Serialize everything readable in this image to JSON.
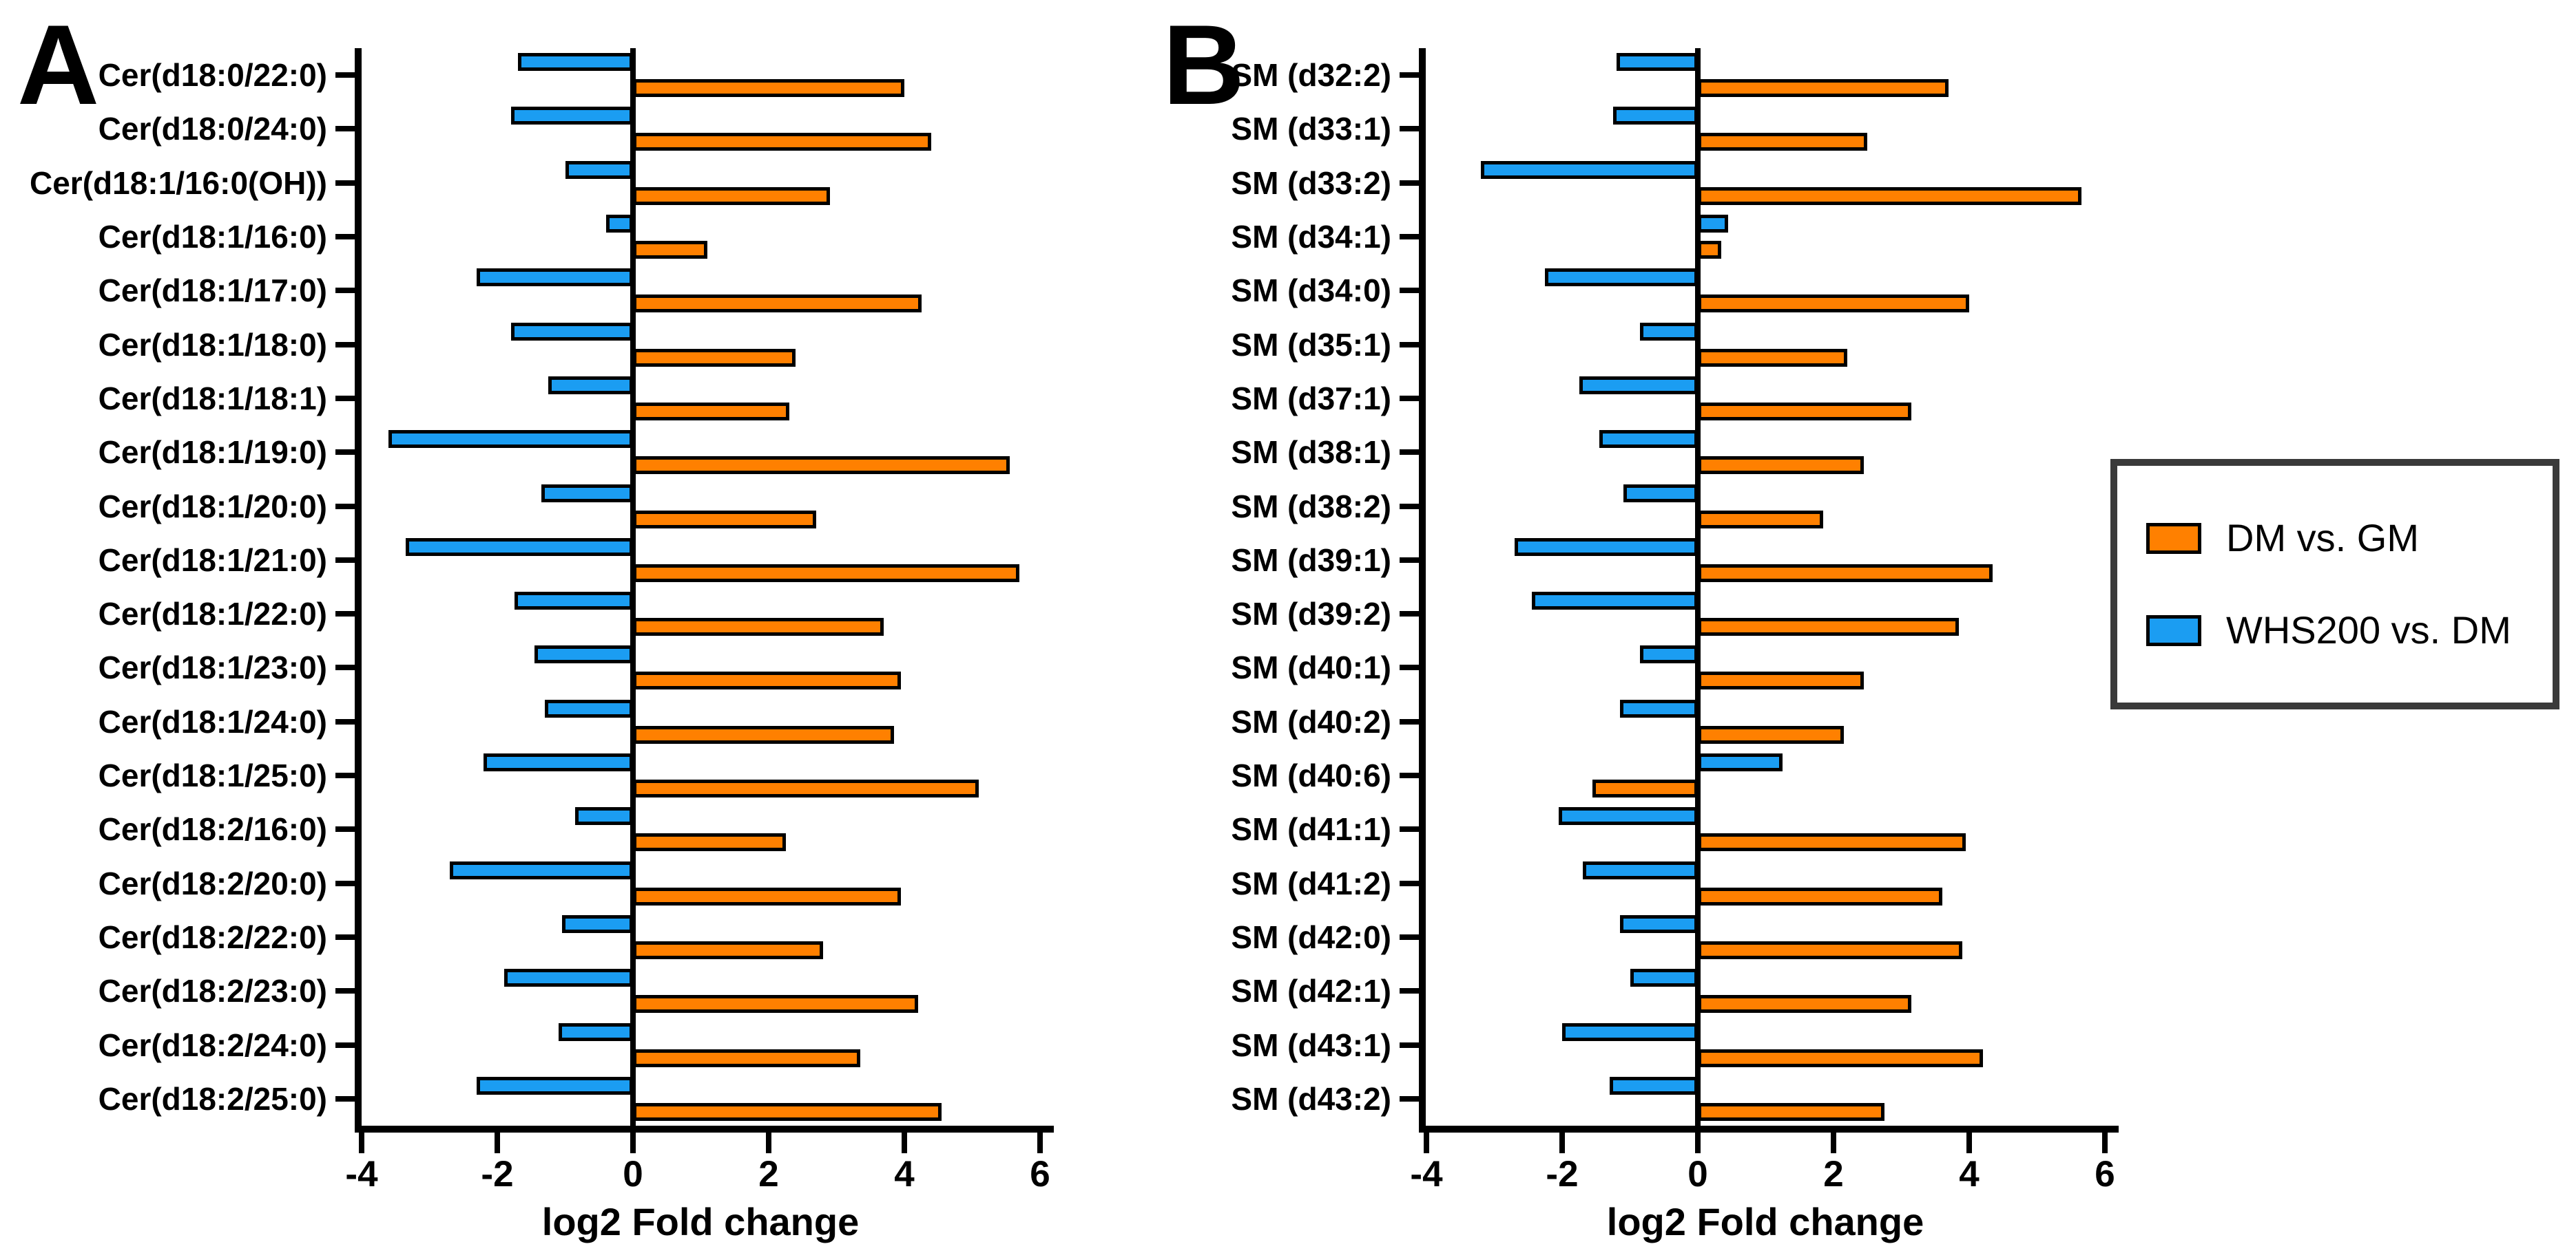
{
  "figure": {
    "background": "#FFFFFF",
    "axis_color": "#000000"
  },
  "legend": {
    "position": "right",
    "border_color": "#3A3A3A",
    "items": [
      {
        "label": "DM vs. GM",
        "color": "#FF8000"
      },
      {
        "label": "WHS200 vs. DM",
        "color": "#1B9DF2"
      }
    ]
  },
  "chart_data": [
    {
      "type": "bar",
      "orientation": "horizontal",
      "panel_label": "A",
      "title": "",
      "xlabel": "log2 Fold change",
      "ylabel": "",
      "xlim": [
        -4,
        6
      ],
      "xticks": [
        -4,
        -2,
        0,
        2,
        4,
        6
      ],
      "xtick_labels": [
        "-4",
        "-2",
        "0",
        "2",
        "4",
        "6"
      ],
      "grid": false,
      "legend_position": "outside-right",
      "categories": [
        "Cer(d18:0/22:0)",
        "Cer(d18:0/24:0)",
        "Cer(d18:1/16:0(OH))",
        "Cer(d18:1/16:0)",
        "Cer(d18:1/17:0)",
        "Cer(d18:1/18:0)",
        "Cer(d18:1/18:1)",
        "Cer(d18:1/19:0)",
        "Cer(d18:1/20:0)",
        "Cer(d18:1/21:0)",
        "Cer(d18:1/22:0)",
        "Cer(d18:1/23:0)",
        "Cer(d18:1/24:0)",
        "Cer(d18:1/25:0)",
        "Cer(d18:2/16:0)",
        "Cer(d18:2/20:0)",
        "Cer(d18:2/22:0)",
        "Cer(d18:2/23:0)",
        "Cer(d18:2/24:0)",
        "Cer(d18:2/25:0)"
      ],
      "series": [
        {
          "name": "DM vs. GM",
          "color": "#FF8000",
          "values": [
            4.0,
            4.4,
            2.9,
            1.1,
            4.25,
            2.4,
            2.3,
            5.55,
            2.7,
            5.7,
            3.7,
            3.95,
            3.85,
            5.1,
            2.25,
            3.95,
            2.8,
            4.2,
            3.35,
            4.55
          ]
        },
        {
          "name": "WHS200 vs. DM",
          "color": "#1B9DF2",
          "values": [
            -1.7,
            -1.8,
            -1.0,
            -0.4,
            -2.3,
            -1.8,
            -1.25,
            -3.6,
            -1.35,
            -3.35,
            -1.75,
            -1.45,
            -1.3,
            -2.2,
            -0.85,
            -2.7,
            -1.05,
            -1.9,
            -1.1,
            -2.3
          ]
        }
      ]
    },
    {
      "type": "bar",
      "orientation": "horizontal",
      "panel_label": "B",
      "title": "",
      "xlabel": "log2 Fold change",
      "ylabel": "",
      "xlim": [
        -4,
        6
      ],
      "xticks": [
        -4,
        -2,
        0,
        2,
        4,
        6
      ],
      "xtick_labels": [
        "-4",
        "-2",
        "0",
        "2",
        "4",
        "6"
      ],
      "grid": false,
      "legend_position": "outside-right",
      "categories": [
        "SM (d32:2)",
        "SM (d33:1)",
        "SM (d33:2)",
        "SM (d34:1)",
        "SM (d34:0)",
        "SM (d35:1)",
        "SM (d37:1)",
        "SM (d38:1)",
        "SM (d38:2)",
        "SM (d39:1)",
        "SM (d39:2)",
        "SM (d40:1)",
        "SM (d40:2)",
        "SM (d40:6)",
        "SM (d41:1)",
        "SM (d41:2)",
        "SM (d42:0)",
        "SM (d42:1)",
        "SM (d43:1)",
        "SM (d43:2)"
      ],
      "series": [
        {
          "name": "DM vs. GM",
          "color": "#FF8000",
          "values": [
            3.7,
            2.5,
            5.65,
            0.35,
            4.0,
            2.2,
            3.15,
            2.45,
            1.85,
            4.35,
            3.85,
            2.45,
            2.15,
            -1.55,
            3.95,
            3.6,
            3.9,
            3.15,
            4.2,
            2.75
          ]
        },
        {
          "name": "WHS200 vs. DM",
          "color": "#1B9DF2",
          "values": [
            -1.2,
            -1.25,
            -3.2,
            0.45,
            -2.25,
            -0.85,
            -1.75,
            -1.45,
            -1.1,
            -2.7,
            -2.45,
            -0.85,
            -1.15,
            1.25,
            -2.05,
            -1.7,
            -1.15,
            -1.0,
            -2.0,
            -1.3
          ]
        }
      ]
    }
  ]
}
